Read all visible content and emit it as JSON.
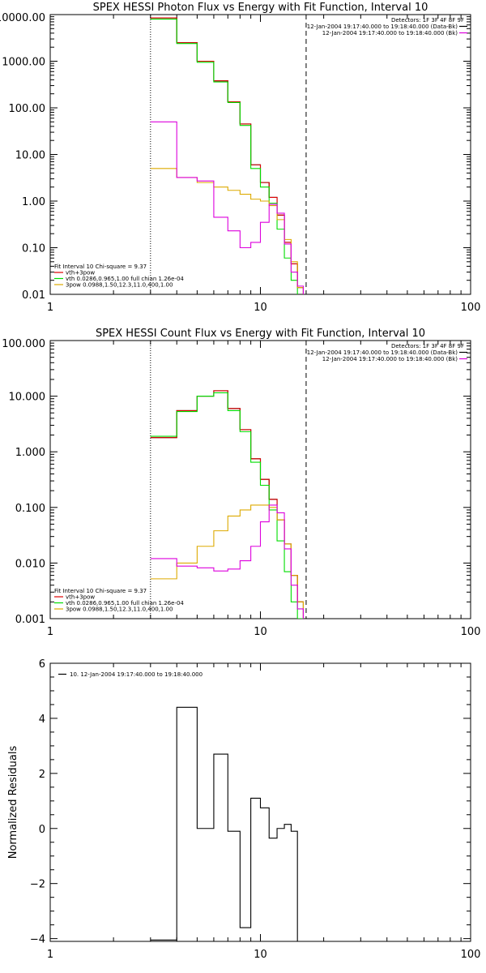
{
  "chart_data": [
    {
      "type": "line",
      "step": true,
      "title": "SPEX HESSI Photon Flux vs Energy with Fit Function, Interval 10",
      "xlabel": "",
      "ylabel": "",
      "xscale": "log",
      "yscale": "log",
      "xlim": [
        1,
        100
      ],
      "ylim": [
        0.01,
        10000
      ],
      "xticks": [
        1,
        10,
        100
      ],
      "xtick_labels": [
        "1",
        "10",
        "100"
      ],
      "yticks": [
        0.01,
        0.1,
        1,
        10,
        100,
        1000,
        10000
      ],
      "ytick_labels": [
        "0.01",
        "0.10",
        "1.00",
        "10.00",
        "100.00",
        "1000.00",
        "10000.00"
      ],
      "vlines": [
        {
          "x": 3,
          "style": "dotted"
        },
        {
          "x": 16.5,
          "style": "dashed"
        }
      ],
      "legend_top": {
        "detectors": "Detectors: 1F 3F 4F 8F 9F",
        "entries": [
          {
            "label": "12-Jan-2004 19:17:40.000 to 19:18:40.000 (Data-Bk)",
            "color": "#000000"
          },
          {
            "label": "12-Jan-2004 19:17:40.000 to 19:18:40.000 (Bk)",
            "color": "#dd00dd"
          }
        ]
      },
      "legend_bottom": {
        "fit": "Fit Interval 10   Chi-square = 9.37",
        "entries": [
          {
            "label": "vth+3pow",
            "color": "#dd0000"
          },
          {
            "label": "vth 0.0286,0.965,1.00  full chian 1.26e-04",
            "color": "#00dd00"
          },
          {
            "label": "3pow 0.0988,1.50,12.3,11.0,400,1.00",
            "color": "#ddaa00"
          }
        ]
      },
      "bin_edges": [
        3,
        4,
        5,
        6,
        7,
        8,
        9,
        10,
        11,
        12,
        13,
        14,
        15,
        16,
        17,
        18
      ],
      "series": [
        {
          "color": "#000000",
          "values": [
            8500,
            2500,
            1000,
            380,
            135,
            45,
            6,
            2.5,
            1.2,
            0.5,
            0.13,
            0.045,
            0.014,
            null,
            null
          ]
        },
        {
          "color": "#dd0000",
          "values": [
            8500,
            2500,
            1000,
            380,
            135,
            45,
            6,
            2.5,
            1.2,
            0.5,
            0.13,
            0.045,
            0.014,
            null,
            null
          ]
        },
        {
          "color": "#00dd00",
          "values": [
            8000,
            2400,
            950,
            360,
            130,
            42,
            5,
            2.0,
            0.9,
            0.25,
            0.06,
            0.02,
            0.009,
            null,
            null
          ]
        },
        {
          "color": "#ddaa00",
          "values": [
            5,
            3.2,
            2.5,
            2.0,
            1.7,
            1.4,
            1.1,
            1.0,
            0.8,
            0.4,
            0.15,
            0.05,
            0.014,
            null,
            null
          ]
        },
        {
          "color": "#dd00dd",
          "values": [
            50,
            3.2,
            2.7,
            0.45,
            0.23,
            0.1,
            0.13,
            0.35,
            0.85,
            0.55,
            0.12,
            0.03,
            0.015,
            null,
            null
          ]
        }
      ]
    },
    {
      "type": "line",
      "step": true,
      "title": "SPEX HESSI Count Flux vs Energy with Fit Function, Interval 10",
      "xlabel": "",
      "ylabel": "",
      "xscale": "log",
      "yscale": "log",
      "xlim": [
        1,
        100
      ],
      "ylim": [
        0.001,
        100
      ],
      "xticks": [
        1,
        10,
        100
      ],
      "xtick_labels": [
        "1",
        "10",
        "100"
      ],
      "yticks": [
        0.001,
        0.01,
        0.1,
        1,
        10,
        100
      ],
      "ytick_labels": [
        "0.001",
        "0.010",
        "0.100",
        "1.000",
        "10.000",
        "100.000"
      ],
      "vlines": [
        {
          "x": 3,
          "style": "dotted"
        },
        {
          "x": 16.5,
          "style": "dashed"
        }
      ],
      "legend_top": {
        "detectors": "Detectors: 1F 3F 4F 8F 9F",
        "entries": [
          {
            "label": "12-Jan-2004 19:17:40.000 to 19:18:40.000 (Data-Bk)",
            "color": "#000000"
          },
          {
            "label": "12-Jan-2004 19:17:40.000 to 19:18:40.000 (Bk)",
            "color": "#dd00dd"
          }
        ]
      },
      "legend_bottom": {
        "fit": "Fit Interval 10   Chi-square = 9.37",
        "entries": [
          {
            "label": "vth+3pow",
            "color": "#dd0000"
          },
          {
            "label": "vth 0.0286,0.965,1.00  full chian 1.26e-04",
            "color": "#00dd00"
          },
          {
            "label": "3pow 0.0988,1.50,12.3,11.0,400,1.00",
            "color": "#ddaa00"
          }
        ]
      },
      "bin_edges": [
        3,
        4,
        5,
        6,
        7,
        8,
        9,
        10,
        11,
        12,
        13,
        14,
        15,
        16,
        17,
        18
      ],
      "series": [
        {
          "color": "#000000",
          "values": [
            1.8,
            5.5,
            10,
            12.5,
            6,
            2.5,
            0.75,
            0.32,
            0.14,
            0.06,
            0.022,
            0.006,
            0.002,
            null,
            null
          ]
        },
        {
          "color": "#dd0000",
          "values": [
            1.8,
            5.5,
            10,
            12.5,
            6,
            2.5,
            0.75,
            0.32,
            0.14,
            0.06,
            0.022,
            0.006,
            0.002,
            null,
            null
          ]
        },
        {
          "color": "#00dd00",
          "values": [
            1.9,
            5.3,
            10,
            11.5,
            5.5,
            2.3,
            0.65,
            0.25,
            0.09,
            0.025,
            0.007,
            0.002,
            0.001,
            null,
            null
          ]
        },
        {
          "color": "#ddaa00",
          "values": [
            0.0052,
            0.01,
            0.02,
            0.038,
            0.07,
            0.09,
            0.11,
            0.11,
            0.1,
            0.06,
            0.022,
            0.006,
            0.002,
            null,
            null
          ]
        },
        {
          "color": "#dd00dd",
          "values": [
            0.012,
            0.0088,
            0.0082,
            0.0072,
            0.0078,
            0.011,
            0.02,
            0.055,
            0.11,
            0.08,
            0.018,
            0.004,
            0.0015,
            null,
            null
          ]
        }
      ]
    },
    {
      "type": "line",
      "step": true,
      "title": "",
      "xlabel": "",
      "ylabel": "Normalized Residuals",
      "xscale": "log",
      "yscale": "linear",
      "xlim": [
        1,
        100
      ],
      "ylim": [
        -4.1,
        6
      ],
      "xticks": [
        1,
        10,
        100
      ],
      "xtick_labels": [
        "1",
        "10",
        "100"
      ],
      "yticks": [
        -4,
        -2,
        0,
        2,
        4,
        6
      ],
      "ytick_labels": [
        "−4",
        "−2",
        "0",
        "2",
        "4",
        "6"
      ],
      "legend_top": {
        "entries": [
          {
            "label": "10. 12-Jan-2004 19:17:40.000 to 19:18:40.000",
            "color": "#000000"
          }
        ]
      },
      "bin_edges": [
        3,
        4,
        5,
        6,
        7,
        8,
        9,
        10,
        11,
        12,
        13,
        14,
        15,
        16,
        17
      ],
      "series": [
        {
          "color": "#000000",
          "values": [
            -4.05,
            4.4,
            0.0,
            2.7,
            -0.1,
            -3.6,
            1.1,
            0.75,
            -0.35,
            0.0,
            0.15,
            -0.1,
            null,
            null
          ]
        }
      ]
    }
  ]
}
